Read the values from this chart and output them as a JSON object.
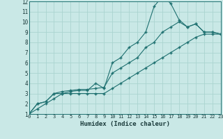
{
  "xlabel": "Humidex (Indice chaleur)",
  "xlim": [
    0,
    23
  ],
  "ylim": [
    1,
    12
  ],
  "xticks": [
    0,
    1,
    2,
    3,
    4,
    5,
    6,
    7,
    8,
    9,
    10,
    11,
    12,
    13,
    14,
    15,
    16,
    17,
    18,
    19,
    20,
    21,
    22,
    23
  ],
  "yticks": [
    1,
    2,
    3,
    4,
    5,
    6,
    7,
    8,
    9,
    10,
    11,
    12
  ],
  "bg_color": "#c9e8e6",
  "grid_color": "#aad4d0",
  "line_color": "#1e7070",
  "line1_x": [
    0,
    1,
    2,
    3,
    4,
    5,
    6,
    7,
    8,
    9,
    10,
    11,
    12,
    13,
    14,
    15,
    16,
    17,
    18,
    19,
    20,
    21,
    22,
    23
  ],
  "line1_y": [
    1,
    2,
    2.2,
    3,
    3,
    3.2,
    3.3,
    3.3,
    4,
    3.5,
    6,
    6.5,
    7.5,
    8,
    9,
    11.5,
    12.5,
    11.8,
    10.2,
    9.5,
    9.8,
    9,
    9,
    8.8
  ],
  "line2_x": [
    0,
    1,
    2,
    3,
    4,
    5,
    6,
    7,
    8,
    9,
    10,
    11,
    12,
    13,
    14,
    15,
    16,
    17,
    18,
    19,
    20,
    21,
    22,
    23
  ],
  "line2_y": [
    1,
    2,
    2.2,
    3,
    3.2,
    3.3,
    3.4,
    3.4,
    3.5,
    3.6,
    5,
    5.5,
    6,
    6.5,
    7.5,
    8,
    9,
    9.5,
    10,
    9.5,
    9.8,
    9,
    9,
    8.8
  ],
  "line3_x": [
    0,
    1,
    2,
    3,
    4,
    5,
    6,
    7,
    8,
    9,
    10,
    11,
    12,
    13,
    14,
    15,
    16,
    17,
    18,
    19,
    20,
    21,
    22,
    23
  ],
  "line3_y": [
    1,
    1.5,
    2,
    2.5,
    3,
    3,
    3,
    3,
    3,
    3,
    3.5,
    4,
    4.5,
    5,
    5.5,
    6,
    6.5,
    7,
    7.5,
    8,
    8.5,
    8.8,
    8.8,
    8.8
  ]
}
